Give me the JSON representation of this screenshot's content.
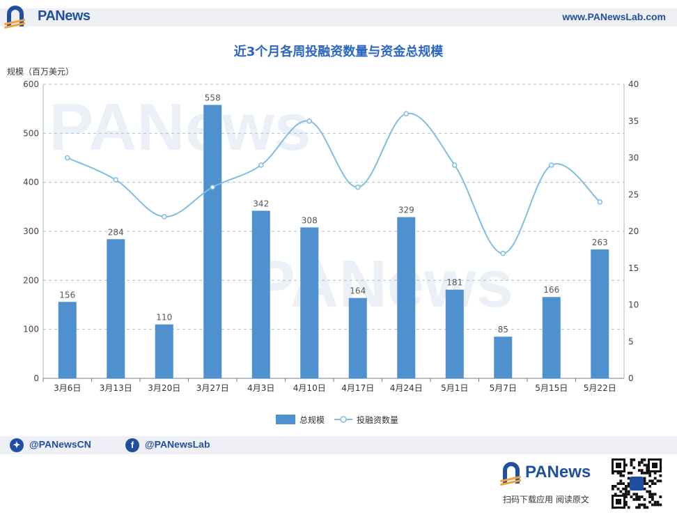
{
  "header": {
    "brand": "PANews",
    "url": "www.PANewsLab.com"
  },
  "chart_data": {
    "type": "bar+line",
    "title": "近3个月各周投融资数量与资金总规模",
    "ylabel_left": "规模（百万美元）",
    "categories": [
      "3月6日",
      "3月13日",
      "3月20日",
      "3月27日",
      "4月3日",
      "4月10日",
      "4月17日",
      "4月24日",
      "5月1日",
      "5月7日",
      "5月15日",
      "5月22日"
    ],
    "series": [
      {
        "name": "总规模",
        "type": "bar",
        "axis": "left",
        "values": [
          156,
          284,
          110,
          558,
          342,
          308,
          164,
          329,
          181,
          85,
          166,
          263
        ],
        "color": "#4f90cf"
      },
      {
        "name": "投融资数量",
        "type": "line",
        "axis": "right",
        "values": [
          30,
          27,
          22,
          26,
          29,
          35,
          26,
          36,
          29,
          17,
          29,
          24
        ],
        "color": "#7fbde3"
      }
    ],
    "ylim_left": [
      0,
      600
    ],
    "yticks_left": [
      0,
      100,
      200,
      300,
      400,
      500,
      600
    ],
    "ylim_right": [
      0,
      40
    ],
    "yticks_right": [
      0,
      5,
      10,
      15,
      20,
      25,
      30,
      35,
      40
    ],
    "grid": true,
    "legend": "bottom-center",
    "watermark": "PANews"
  },
  "footer": {
    "twitter": "@PANewsCN",
    "facebook": "@PANewsLab",
    "brand": "PANews",
    "cta": "扫码下载应用  阅读原文"
  },
  "colors": {
    "brand": "#1f4f9e",
    "title": "#2b65c2",
    "bar": "#4f90cf",
    "line": "#7fbde3",
    "grid": "#9fc6d8"
  }
}
